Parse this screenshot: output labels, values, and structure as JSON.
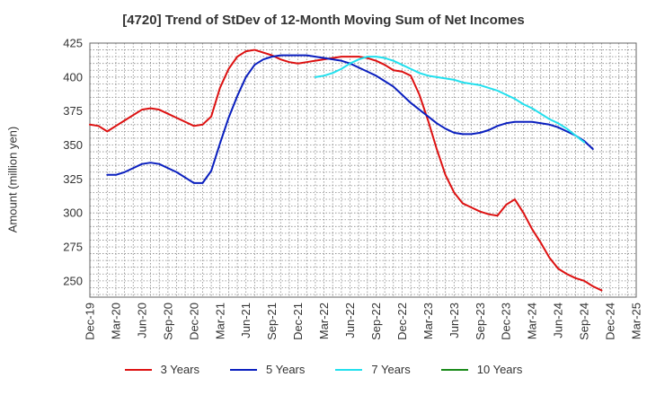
{
  "chart_data": {
    "type": "line",
    "title": "[4720]  Trend of StDev of 12-Month Moving Sum of Net Incomes",
    "xlabel": "",
    "ylabel": "Amount (million yen)",
    "ylim": [
      238,
      425
    ],
    "yticks": [
      250,
      275,
      300,
      325,
      350,
      375,
      400,
      425
    ],
    "x_tick_labels": [
      "Dec-19",
      "Mar-20",
      "Jun-20",
      "Sep-20",
      "Dec-20",
      "Mar-21",
      "Jun-21",
      "Sep-21",
      "Dec-21",
      "Mar-22",
      "Jun-22",
      "Sep-22",
      "Dec-22",
      "Mar-23",
      "Jun-23",
      "Sep-23",
      "Dec-23",
      "Mar-24",
      "Jun-24",
      "Sep-24",
      "Dec-24",
      "Mar-25"
    ],
    "x_range_months": [
      0,
      63
    ],
    "grid": true,
    "legend_position": "bottom",
    "series": [
      {
        "name": "3 Years",
        "color": "#dd1111",
        "points": [
          [
            0,
            365
          ],
          [
            1,
            364
          ],
          [
            2,
            360
          ],
          [
            3,
            364
          ],
          [
            4,
            368
          ],
          [
            5,
            372
          ],
          [
            6,
            376
          ],
          [
            7,
            377
          ],
          [
            8,
            376
          ],
          [
            9,
            373
          ],
          [
            10,
            370
          ],
          [
            11,
            367
          ],
          [
            12,
            364
          ],
          [
            13,
            365
          ],
          [
            14,
            371
          ],
          [
            15,
            392
          ],
          [
            16,
            406
          ],
          [
            17,
            415
          ],
          [
            18,
            419
          ],
          [
            19,
            420
          ],
          [
            20,
            418
          ],
          [
            21,
            416
          ],
          [
            22,
            413
          ],
          [
            23,
            411
          ],
          [
            24,
            410
          ],
          [
            25,
            411
          ],
          [
            26,
            412
          ],
          [
            27,
            413
          ],
          [
            28,
            414
          ],
          [
            29,
            415
          ],
          [
            30,
            415
          ],
          [
            31,
            415
          ],
          [
            32,
            414
          ],
          [
            33,
            412
          ],
          [
            34,
            409
          ],
          [
            35,
            405
          ],
          [
            36,
            404
          ],
          [
            37,
            401
          ],
          [
            38,
            387
          ],
          [
            39,
            368
          ],
          [
            40,
            347
          ],
          [
            41,
            328
          ],
          [
            42,
            315
          ],
          [
            43,
            307
          ],
          [
            44,
            304
          ],
          [
            45,
            301
          ],
          [
            46,
            299
          ],
          [
            47,
            298
          ],
          [
            48,
            306
          ],
          [
            49,
            310
          ],
          [
            50,
            300
          ],
          [
            51,
            288
          ],
          [
            52,
            278
          ],
          [
            53,
            267
          ],
          [
            54,
            259
          ],
          [
            55,
            255
          ],
          [
            56,
            252
          ],
          [
            57,
            250
          ],
          [
            58,
            246
          ],
          [
            59,
            243
          ]
        ]
      },
      {
        "name": "5 Years",
        "color": "#0a1fbf",
        "points": [
          [
            2,
            328
          ],
          [
            3,
            328
          ],
          [
            4,
            330
          ],
          [
            5,
            333
          ],
          [
            6,
            336
          ],
          [
            7,
            337
          ],
          [
            8,
            336
          ],
          [
            9,
            333
          ],
          [
            10,
            330
          ],
          [
            11,
            326
          ],
          [
            12,
            322
          ],
          [
            13,
            322
          ],
          [
            14,
            331
          ],
          [
            15,
            351
          ],
          [
            16,
            370
          ],
          [
            17,
            386
          ],
          [
            18,
            400
          ],
          [
            19,
            409
          ],
          [
            20,
            413
          ],
          [
            21,
            415
          ],
          [
            22,
            416
          ],
          [
            23,
            416
          ],
          [
            24,
            416
          ],
          [
            25,
            416
          ],
          [
            26,
            415
          ],
          [
            27,
            414
          ],
          [
            28,
            413
          ],
          [
            29,
            412
          ],
          [
            30,
            410
          ],
          [
            31,
            407
          ],
          [
            32,
            404
          ],
          [
            33,
            401
          ],
          [
            34,
            397
          ],
          [
            35,
            393
          ],
          [
            36,
            387
          ],
          [
            37,
            381
          ],
          [
            38,
            376
          ],
          [
            39,
            371
          ],
          [
            40,
            366
          ],
          [
            41,
            362
          ],
          [
            42,
            359
          ],
          [
            43,
            358
          ],
          [
            44,
            358
          ],
          [
            45,
            359
          ],
          [
            46,
            361
          ],
          [
            47,
            364
          ],
          [
            48,
            366
          ],
          [
            49,
            367
          ],
          [
            50,
            367
          ],
          [
            51,
            367
          ],
          [
            52,
            366
          ],
          [
            53,
            365
          ],
          [
            54,
            363
          ],
          [
            55,
            360
          ],
          [
            56,
            357
          ],
          [
            57,
            353
          ],
          [
            58,
            347
          ]
        ]
      },
      {
        "name": "7 Years",
        "color": "#22e0ee",
        "points": [
          [
            26,
            400
          ],
          [
            27,
            401
          ],
          [
            28,
            403
          ],
          [
            29,
            406
          ],
          [
            30,
            410
          ],
          [
            31,
            413
          ],
          [
            32,
            415
          ],
          [
            33,
            415
          ],
          [
            34,
            414
          ],
          [
            35,
            412
          ],
          [
            36,
            409
          ],
          [
            37,
            406
          ],
          [
            38,
            403
          ],
          [
            39,
            401
          ],
          [
            40,
            400
          ],
          [
            41,
            399
          ],
          [
            42,
            398
          ],
          [
            43,
            396
          ],
          [
            44,
            395
          ],
          [
            45,
            394
          ],
          [
            46,
            392
          ],
          [
            47,
            390
          ],
          [
            48,
            387
          ],
          [
            49,
            384
          ],
          [
            50,
            380
          ],
          [
            51,
            377
          ],
          [
            52,
            373
          ],
          [
            53,
            369
          ],
          [
            54,
            366
          ],
          [
            55,
            362
          ],
          [
            56,
            357
          ],
          [
            57,
            352
          ]
        ]
      },
      {
        "name": "10 Years",
        "color": "#1a8a1a",
        "points": []
      }
    ]
  }
}
